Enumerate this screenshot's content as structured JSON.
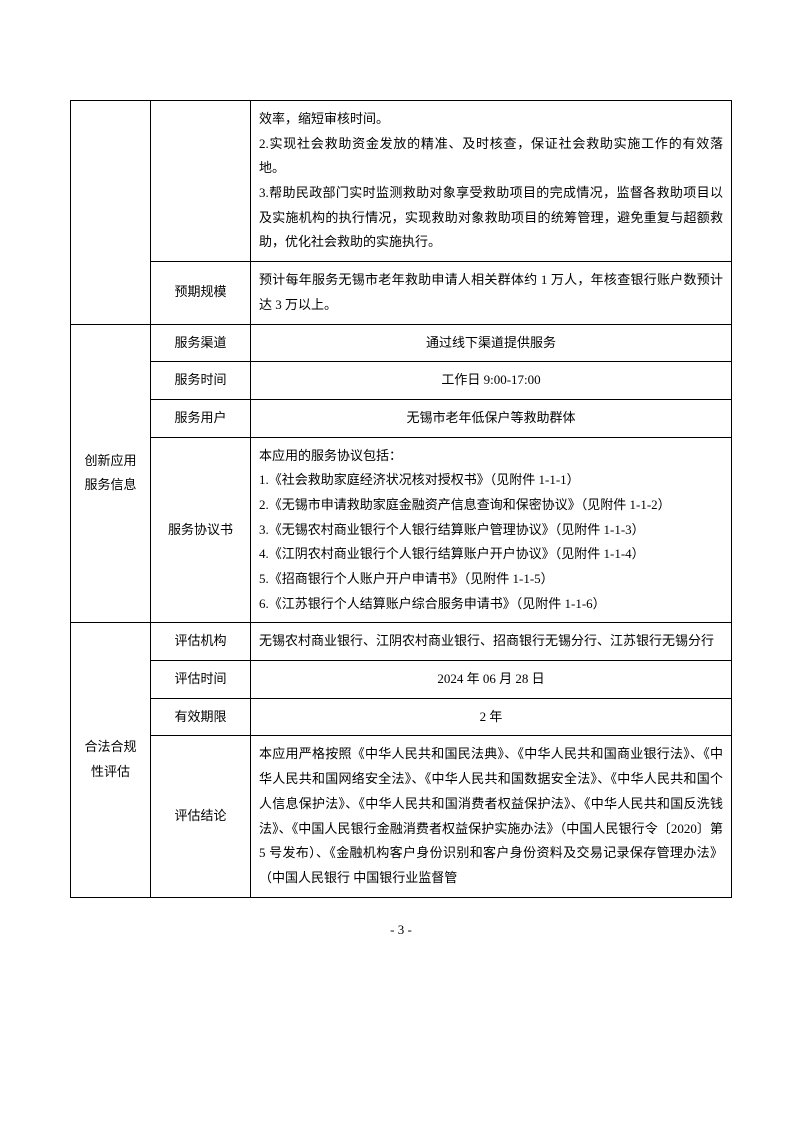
{
  "section0": {
    "row0": {
      "content": "效率，缩短审核时间。\n2.实现社会救助资金发放的精准、及时核查，保证社会救助实施工作的有效落地。\n3.帮助民政部门实时监测救助对象享受救助项目的完成情况，监督各救助项目以及实施机构的执行情况，实现救助对象救助项目的统筹管理，避免重复与超额救助，优化社会救助的实施执行。"
    },
    "row1": {
      "label": "预期规模",
      "content": "预计每年服务无锡市老年救助申请人相关群体约 1 万人，年核查银行账户数预计达 3 万以上。"
    }
  },
  "section1": {
    "header": "创新应用服务信息",
    "row0": {
      "label": "服务渠道",
      "content": "通过线下渠道提供服务"
    },
    "row1": {
      "label": "服务时间",
      "content": "工作日 9:00-17:00"
    },
    "row2": {
      "label": "服务用户",
      "content": "无锡市老年低保户等救助群体"
    },
    "row3": {
      "label": "服务协议书",
      "content": "本应用的服务协议包括：\n1.《社会救助家庭经济状况核对授权书》（见附件 1-1-1）\n2.《无锡市申请救助家庭金融资产信息查询和保密协议》（见附件 1-1-2）\n3.《无锡农村商业银行个人银行结算账户管理协议》（见附件 1-1-3）\n4.《江阴农村商业银行个人银行结算账户开户协议》（见附件 1-1-4）\n5.《招商银行个人账户开户申请书》（见附件 1-1-5）\n6.《江苏银行个人结算账户综合服务申请书》（见附件 1-1-6）"
    }
  },
  "section2": {
    "header": "合法合规性评估",
    "row0": {
      "label": "评估机构",
      "content": "无锡农村商业银行、江阴农村商业银行、招商银行无锡分行、江苏银行无锡分行"
    },
    "row1": {
      "label": "评估时间",
      "content": "2024 年 06 月 28 日"
    },
    "row2": {
      "label": "有效期限",
      "content": "2 年"
    },
    "row3": {
      "label": "评估结论",
      "content": "本应用严格按照《中华人民共和国民法典》、《中华人民共和国商业银行法》、《中华人民共和国网络安全法》、《中华人民共和国数据安全法》、《中华人民共和国个人信息保护法》、《中华人民共和国消费者权益保护法》、《中华人民共和国反洗钱法》、《中国人民银行金融消费者权益保护实施办法》（中国人民银行令〔2020〕第 5 号发布）、《金融机构客户身份识别和客户身份资料及交易记录保存管理办法》（中国人民银行 中国银行业监督管"
    }
  },
  "page_number": "- 3 -"
}
